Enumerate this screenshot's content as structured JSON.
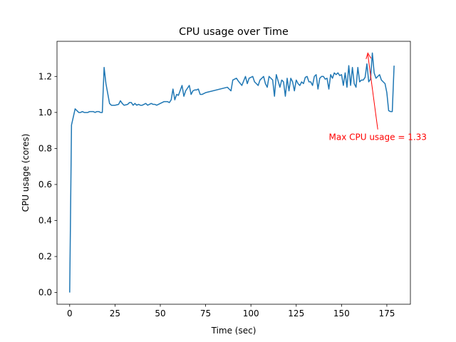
{
  "chart_data": {
    "type": "line",
    "title": "CPU usage over Time",
    "xlabel": "Time (sec)",
    "ylabel": "CPU usage (cores)",
    "xlim": [
      -7,
      188
    ],
    "ylim": [
      -0.065,
      1.395
    ],
    "xticks": [
      0,
      25,
      50,
      75,
      100,
      125,
      150,
      175
    ],
    "yticks": [
      "0.0",
      "0.2",
      "0.4",
      "0.6",
      "0.8",
      "1.0",
      "1.2"
    ],
    "grid": false,
    "line_color": "#1f77b4",
    "annotation": {
      "text": "Max CPU usage = 1.33",
      "color": "#ff0000",
      "point": [
        164.5,
        1.33
      ],
      "text_anchor_data": [
        170,
        0.85
      ]
    },
    "series": [
      {
        "x": [
          0,
          1,
          3,
          4,
          5,
          6,
          7,
          8,
          9,
          10,
          11,
          12,
          13,
          14,
          15,
          16,
          17,
          18,
          19,
          20,
          22,
          23,
          24,
          25,
          27,
          28,
          29,
          30,
          32,
          33,
          34,
          35,
          36,
          37,
          38,
          39,
          40,
          41,
          42,
          43,
          44,
          45,
          46,
          47,
          48,
          49,
          50,
          51,
          52,
          53,
          54,
          55,
          56,
          57,
          58,
          59,
          60,
          62,
          63,
          64,
          66,
          67,
          68,
          69,
          70,
          71,
          72,
          73,
          74,
          75,
          87,
          89,
          90,
          92,
          93,
          95,
          97,
          98,
          99,
          101,
          102,
          103,
          104,
          105,
          106,
          107,
          108,
          109,
          110,
          112,
          113,
          114,
          116,
          117,
          118,
          119,
          120,
          121,
          122,
          123,
          124,
          125,
          126,
          127,
          128,
          129,
          130,
          131,
          132,
          133,
          134,
          135,
          136,
          137,
          138,
          139,
          140,
          141,
          142,
          143,
          144,
          145,
          146,
          147,
          148,
          149,
          150,
          151,
          152,
          153,
          154,
          155,
          156,
          157,
          158,
          159,
          160,
          161,
          162,
          163,
          164,
          165,
          166,
          167,
          168,
          169,
          170,
          171,
          172,
          173,
          174,
          175,
          176,
          177,
          178,
          179
        ],
        "values": [
          0.0,
          0.93,
          1.02,
          1.01,
          1.0,
          1.0,
          1.005,
          1.0,
          1.0,
          1.0,
          1.005,
          1.005,
          1.005,
          1.0,
          1.005,
          1.005,
          1.0,
          1.0,
          1.25,
          1.16,
          1.05,
          1.04,
          1.04,
          1.04,
          1.045,
          1.065,
          1.05,
          1.04,
          1.045,
          1.055,
          1.055,
          1.04,
          1.05,
          1.04,
          1.045,
          1.04,
          1.04,
          1.045,
          1.05,
          1.04,
          1.045,
          1.05,
          1.045,
          1.045,
          1.04,
          1.045,
          1.05,
          1.055,
          1.06,
          1.06,
          1.06,
          1.055,
          1.07,
          1.13,
          1.07,
          1.1,
          1.095,
          1.15,
          1.09,
          1.12,
          1.15,
          1.1,
          1.12,
          1.125,
          1.125,
          1.13,
          1.1,
          1.1,
          1.105,
          1.11,
          1.14,
          1.12,
          1.18,
          1.19,
          1.175,
          1.15,
          1.2,
          1.16,
          1.19,
          1.2,
          1.17,
          1.16,
          1.15,
          1.18,
          1.19,
          1.2,
          1.16,
          1.14,
          1.2,
          1.18,
          1.09,
          1.21,
          1.14,
          1.18,
          1.17,
          1.09,
          1.19,
          1.12,
          1.19,
          1.17,
          1.12,
          1.18,
          1.16,
          1.15,
          1.17,
          1.16,
          1.195,
          1.2,
          1.17,
          1.17,
          1.15,
          1.2,
          1.21,
          1.13,
          1.19,
          1.2,
          1.2,
          1.185,
          1.19,
          1.13,
          1.21,
          1.19,
          1.22,
          1.21,
          1.22,
          1.205,
          1.21,
          1.15,
          1.22,
          1.14,
          1.26,
          1.15,
          1.25,
          1.16,
          1.14,
          1.25,
          1.17,
          1.18,
          1.18,
          1.195,
          1.27,
          1.17,
          1.185,
          1.33,
          1.22,
          1.19,
          1.2,
          1.21,
          1.18,
          1.17,
          1.16,
          1.11,
          1.01,
          1.005,
          1.005,
          1.26
        ]
      }
    ]
  }
}
